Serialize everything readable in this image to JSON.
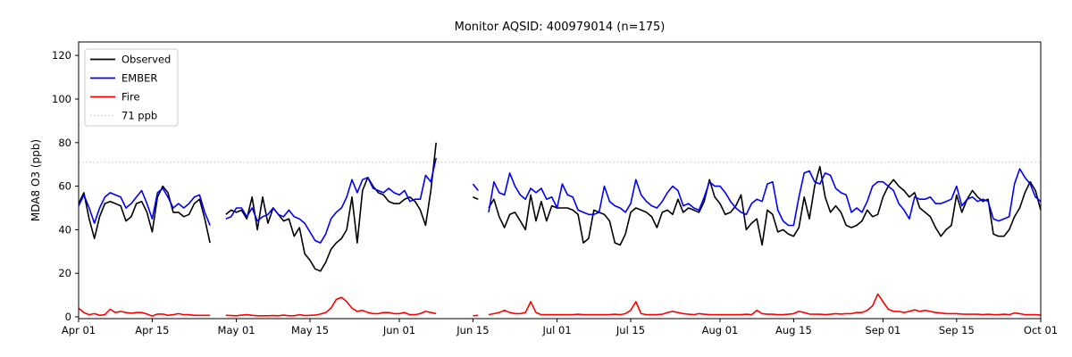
{
  "chart_data": {
    "type": "line",
    "title": "Monitor AQSID: 400979014 (n=175)",
    "ylabel": "MDA8 O3 (ppb)",
    "xlabel": "",
    "n_points": 175,
    "ylim": [
      -0.8,
      126.2
    ],
    "yticks": [
      0,
      20,
      40,
      60,
      80,
      100,
      120
    ],
    "x_range_days": [
      0,
      183
    ],
    "x_tick_days": [
      0,
      14,
      30,
      44,
      61,
      75,
      91,
      105,
      122,
      136,
      153,
      167,
      183
    ],
    "x_tick_labels": [
      "Apr 01",
      "Apr 15",
      "May 01",
      "May 15",
      "Jun 01",
      "Jun 15",
      "Jul 01",
      "Jul 15",
      "Aug 01",
      "Aug 15",
      "Sep 01",
      "Sep 15",
      "Oct 01"
    ],
    "grid": false,
    "legend_position": "upper-left",
    "threshold": {
      "label": "71 ppb",
      "value": 71,
      "color": "#d3d3d3",
      "style": "dotted"
    },
    "series": [
      {
        "name": "Observed",
        "color": "#000000",
        "values": [
          52,
          57,
          45,
          36,
          46,
          52,
          53,
          52,
          51,
          44,
          46,
          52,
          53,
          48,
          39,
          55,
          60,
          57,
          48,
          48,
          46,
          47,
          52,
          54,
          45,
          34,
          null,
          null,
          47,
          49,
          48,
          49,
          45,
          55,
          40,
          55,
          43,
          50,
          47,
          44,
          45,
          37,
          41,
          29,
          26,
          22,
          21,
          25,
          31,
          34,
          36,
          40,
          55,
          34,
          58,
          64,
          60,
          57,
          56,
          53,
          52,
          52,
          54,
          55,
          53,
          49,
          42,
          58,
          80,
          null,
          null,
          null,
          null,
          null,
          null,
          55,
          54,
          null,
          50,
          54,
          46,
          41,
          47,
          48,
          44,
          40,
          56,
          44,
          53,
          44,
          51,
          50,
          50,
          50,
          49,
          47,
          34,
          36,
          49,
          48,
          47,
          44,
          34,
          33,
          38,
          48,
          50,
          49,
          48,
          46,
          41,
          48,
          49,
          47,
          54,
          48,
          50,
          49,
          48,
          53,
          63,
          55,
          52,
          47,
          48,
          51,
          56,
          40,
          43,
          45,
          33,
          49,
          47,
          39,
          40,
          38,
          37,
          41,
          55,
          45,
          60,
          69,
          55,
          48,
          51,
          48,
          42,
          41,
          42,
          44,
          49,
          46,
          47,
          55,
          60,
          63,
          60,
          58,
          55,
          57,
          50,
          48,
          46,
          41,
          37,
          40,
          42,
          56,
          48,
          54,
          58,
          55,
          53,
          54,
          38,
          37,
          37,
          40,
          46,
          50,
          57,
          62,
          58,
          49
        ]
      },
      {
        "name": "EMBER",
        "color": "#0000ff",
        "values": [
          51,
          56,
          50,
          43,
          50,
          55,
          57,
          56,
          55,
          50,
          52,
          55,
          58,
          52,
          45,
          57,
          59,
          55,
          50,
          52,
          50,
          52,
          55,
          56,
          48,
          42,
          null,
          null,
          45,
          46,
          50,
          50,
          46,
          50,
          44,
          46,
          47,
          50,
          47,
          46,
          49,
          46,
          45,
          43,
          39,
          35,
          34,
          38,
          45,
          48,
          50,
          55,
          63,
          57,
          63,
          64,
          59,
          58,
          57,
          59,
          57,
          56,
          58,
          53,
          54,
          54,
          65,
          62,
          73,
          null,
          null,
          null,
          null,
          null,
          null,
          61,
          58,
          null,
          48,
          62,
          57,
          56,
          66,
          60,
          56,
          54,
          59,
          57,
          59,
          54,
          55,
          50,
          61,
          56,
          55,
          49,
          48,
          47,
          47,
          48,
          60,
          53,
          51,
          50,
          48,
          52,
          63,
          56,
          53,
          51,
          50,
          53,
          57,
          60,
          58,
          51,
          52,
          50,
          49,
          55,
          62,
          60,
          60,
          57,
          53,
          50,
          48,
          47,
          52,
          54,
          53,
          61,
          62,
          49,
          44,
          42,
          42,
          55,
          66,
          67,
          62,
          61,
          66,
          65,
          59,
          57,
          56,
          48,
          50,
          48,
          53,
          60,
          62,
          62,
          60,
          58,
          52,
          49,
          45,
          55,
          54,
          54,
          55,
          52,
          52,
          53,
          54,
          60,
          51,
          54,
          55,
          53,
          54,
          53,
          45,
          44,
          45,
          46,
          61,
          68,
          64,
          61,
          55,
          53
        ]
      },
      {
        "name": "Fire",
        "color": "#ff0000",
        "values": [
          4,
          2,
          1,
          1.5,
          0.7,
          1,
          3.5,
          2,
          2.5,
          2,
          1.7,
          2,
          2,
          1.3,
          0.4,
          1.3,
          1.3,
          0.7,
          1,
          1.5,
          1,
          1,
          0.7,
          0.7,
          0.7,
          0.7,
          null,
          null,
          0.7,
          0.6,
          0.5,
          0.8,
          1,
          0.7,
          0.5,
          0.5,
          0.5,
          0.6,
          0.5,
          0.8,
          0.5,
          0.5,
          1,
          0.6,
          0.7,
          0.8,
          1.3,
          2,
          4,
          8,
          9,
          7,
          4,
          2.5,
          3,
          2,
          1.5,
          1.5,
          2,
          2,
          1.5,
          1.5,
          2,
          1,
          1,
          1.5,
          2.5,
          2,
          1.5,
          null,
          null,
          null,
          null,
          null,
          null,
          0.5,
          0.7,
          null,
          1,
          1.5,
          2,
          3,
          2,
          1.5,
          1.5,
          2,
          7,
          2,
          1,
          1,
          1,
          1,
          1,
          1,
          1,
          1.2,
          1,
          1,
          1,
          1,
          1,
          1,
          1.2,
          1,
          1.5,
          3,
          7,
          1.5,
          1,
          1,
          1,
          1.2,
          2,
          2.5,
          2,
          1.5,
          1.2,
          1,
          1.5,
          1.2,
          1,
          1,
          1,
          1,
          1,
          1,
          1,
          1.2,
          1,
          3,
          1.5,
          1.2,
          1.2,
          1,
          1,
          1.2,
          1.5,
          2.5,
          2,
          1.3,
          1.2,
          1.2,
          1,
          1.2,
          1.5,
          1.3,
          1.5,
          1.5,
          2,
          2,
          3,
          5,
          10.5,
          7,
          3.5,
          2.5,
          2.5,
          2,
          2.5,
          3.2,
          2.5,
          3,
          2.5,
          2,
          1.8,
          1.5,
          1.5,
          1.5,
          1.3,
          1.2,
          1.2,
          1.2,
          1,
          1.2,
          1,
          1,
          1.2,
          1,
          1.8,
          1.5,
          1,
          1,
          1,
          0.8
        ]
      }
    ]
  },
  "legend": {
    "items": [
      {
        "key": "observed",
        "label": "Observed",
        "color": "#000000",
        "dash": null
      },
      {
        "key": "ember",
        "label": "EMBER",
        "color": "#0000ff",
        "dash": null
      },
      {
        "key": "fire",
        "label": "Fire",
        "color": "#ff0000",
        "dash": null
      },
      {
        "key": "threshold",
        "label": "71 ppb",
        "color": "#d3d3d3",
        "dash": "1.5 2.6"
      }
    ]
  },
  "colors": {
    "background": "#ffffff",
    "spine": "#000000",
    "tick_label": "#000000",
    "legend_border": "#cccccc"
  }
}
